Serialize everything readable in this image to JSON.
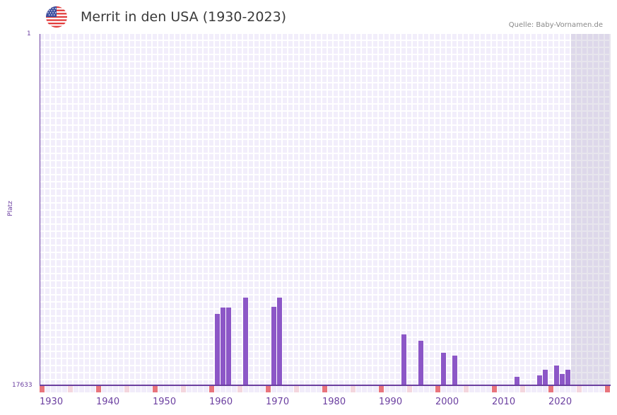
{
  "header": {
    "title": "Merrit in den USA (1930-2023)",
    "source": "Quelle: Baby-Vornamen.de",
    "flag_icon": "us-flag-icon"
  },
  "colors": {
    "bar": "#8c57c7",
    "axis": "#6b3fa0",
    "grid_bg": "#f2eefb",
    "decade_marker": "#e8747c",
    "half_decade_marker": "#f4d6de",
    "future_shade": "#e3dfec"
  },
  "chart_data": {
    "type": "bar",
    "title": "Merrit in den USA (1930-2023)",
    "xlabel": "",
    "ylabel": "Platz",
    "ylim": [
      17633,
      1
    ],
    "y_ticks": [
      "1",
      "17633"
    ],
    "x_ticks": [
      "1930",
      "1940",
      "1950",
      "1960",
      "1970",
      "1980",
      "1990",
      "2000",
      "2010",
      "2020"
    ],
    "x_range": [
      1930,
      2030
    ],
    "grid": true,
    "legend": null,
    "note": "Values are rank (Platz); lower rank = taller bar. Years without a bar had no ranking.",
    "categories": [
      "1961",
      "1962",
      "1963",
      "1966",
      "1971",
      "1972",
      "1994",
      "1997",
      "2001",
      "2003",
      "2014",
      "2018",
      "2019",
      "2021",
      "2022",
      "2023"
    ],
    "values": [
      14050,
      13731,
      13731,
      13234,
      13695,
      13234,
      15079,
      15398,
      16001,
      16143,
      17207,
      17136,
      16852,
      16639,
      17065,
      16852
    ]
  },
  "axis": {
    "y_top_label": "1",
    "y_bottom_label": "17633",
    "y_title": "Platz"
  }
}
